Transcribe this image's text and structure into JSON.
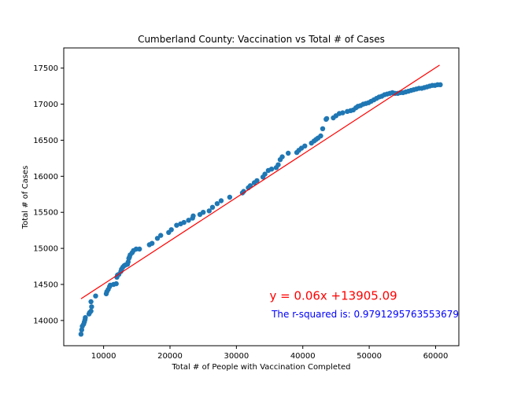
{
  "chart_data": {
    "type": "scatter",
    "title": "Cumberland County: Vaccination vs Total # of Cases",
    "xlabel": "Total # of People with Vaccination Completed",
    "ylabel": "Total # of Cases",
    "xlim": [
      4000,
      63500
    ],
    "ylim": [
      13650,
      17780
    ],
    "xticks": [
      10000,
      20000,
      30000,
      40000,
      50000,
      60000
    ],
    "yticks": [
      14000,
      14500,
      15000,
      15500,
      16000,
      16500,
      17000,
      17500
    ],
    "grid": false,
    "point_color": "#1f77b4",
    "line_color": "#ff0000",
    "annotation_color": "#0000ff",
    "series": [
      {
        "points": [
          [
            6600,
            13810
          ],
          [
            6700,
            13870
          ],
          [
            6800,
            13920
          ],
          [
            7000,
            13950
          ],
          [
            7100,
            13980
          ],
          [
            7200,
            14010
          ],
          [
            7250,
            14040
          ],
          [
            7800,
            14090
          ],
          [
            7900,
            14110
          ],
          [
            8100,
            14130
          ],
          [
            8200,
            14190
          ],
          [
            8100,
            14260
          ],
          [
            8800,
            14340
          ],
          [
            10400,
            14370
          ],
          [
            10500,
            14400
          ],
          [
            10700,
            14430
          ],
          [
            10900,
            14470
          ],
          [
            11000,
            14490
          ],
          [
            11500,
            14500
          ],
          [
            11900,
            14510
          ],
          [
            12000,
            14600
          ],
          [
            12100,
            14630
          ],
          [
            12300,
            14640
          ],
          [
            12600,
            14680
          ],
          [
            12700,
            14710
          ],
          [
            12900,
            14740
          ],
          [
            13100,
            14760
          ],
          [
            13300,
            14770
          ],
          [
            13600,
            14780
          ],
          [
            13700,
            14810
          ],
          [
            13800,
            14860
          ],
          [
            13900,
            14880
          ],
          [
            14000,
            14910
          ],
          [
            14300,
            14940
          ],
          [
            14500,
            14970
          ],
          [
            14900,
            14990
          ],
          [
            15400,
            14990
          ],
          [
            16900,
            15050
          ],
          [
            17300,
            15070
          ],
          [
            18100,
            15140
          ],
          [
            18600,
            15180
          ],
          [
            19800,
            15220
          ],
          [
            20200,
            15260
          ],
          [
            21000,
            15320
          ],
          [
            21600,
            15340
          ],
          [
            22100,
            15360
          ],
          [
            22800,
            15390
          ],
          [
            23400,
            15420
          ],
          [
            23500,
            15450
          ],
          [
            24500,
            15470
          ],
          [
            25000,
            15500
          ],
          [
            25900,
            15520
          ],
          [
            26400,
            15570
          ],
          [
            27100,
            15620
          ],
          [
            27700,
            15660
          ],
          [
            29000,
            15710
          ],
          [
            30900,
            15770
          ],
          [
            31100,
            15790
          ],
          [
            31800,
            15840
          ],
          [
            32100,
            15870
          ],
          [
            32700,
            15910
          ],
          [
            33100,
            15940
          ],
          [
            34000,
            15990
          ],
          [
            34300,
            16030
          ],
          [
            34800,
            16080
          ],
          [
            35300,
            16100
          ],
          [
            36000,
            16120
          ],
          [
            36300,
            16160
          ],
          [
            36600,
            16230
          ],
          [
            36900,
            16270
          ],
          [
            37800,
            16320
          ],
          [
            39100,
            16330
          ],
          [
            39400,
            16360
          ],
          [
            39800,
            16390
          ],
          [
            40300,
            16420
          ],
          [
            41300,
            16460
          ],
          [
            41700,
            16490
          ],
          [
            42000,
            16510
          ],
          [
            42300,
            16530
          ],
          [
            42700,
            16560
          ],
          [
            43000,
            16660
          ],
          [
            43500,
            16790
          ],
          [
            43600,
            16800
          ],
          [
            44600,
            16810
          ],
          [
            45000,
            16840
          ],
          [
            45500,
            16870
          ],
          [
            46000,
            16880
          ],
          [
            46700,
            16900
          ],
          [
            47200,
            16910
          ],
          [
            47600,
            16920
          ],
          [
            48000,
            16950
          ],
          [
            48300,
            16970
          ],
          [
            48700,
            16980
          ],
          [
            49100,
            17000
          ],
          [
            49500,
            17010
          ],
          [
            49900,
            17020
          ],
          [
            50300,
            17040
          ],
          [
            50700,
            17060
          ],
          [
            51100,
            17080
          ],
          [
            51500,
            17100
          ],
          [
            51900,
            17110
          ],
          [
            52300,
            17130
          ],
          [
            52700,
            17140
          ],
          [
            53100,
            17150
          ],
          [
            53500,
            17160
          ],
          [
            53900,
            17150
          ],
          [
            54300,
            17150
          ],
          [
            54700,
            17160
          ],
          [
            55100,
            17160
          ],
          [
            55500,
            17170
          ],
          [
            55900,
            17180
          ],
          [
            56300,
            17190
          ],
          [
            56700,
            17200
          ],
          [
            57100,
            17210
          ],
          [
            57500,
            17220
          ],
          [
            57900,
            17220
          ],
          [
            58300,
            17230
          ],
          [
            58700,
            17240
          ],
          [
            59100,
            17250
          ],
          [
            59500,
            17260
          ],
          [
            59900,
            17260
          ],
          [
            60300,
            17270
          ],
          [
            60700,
            17270
          ]
        ]
      }
    ],
    "regression": {
      "slope": 0.06,
      "intercept": 13905.09,
      "x_range": [
        6600,
        60600
      ],
      "equation_label": "y = 0.06x +13905.09",
      "equation_pos": [
        35000,
        14290
      ],
      "r_squared_label": "The r-squared is: 0.9791295763553679",
      "r_squared_pos": [
        35300,
        14040
      ]
    }
  }
}
